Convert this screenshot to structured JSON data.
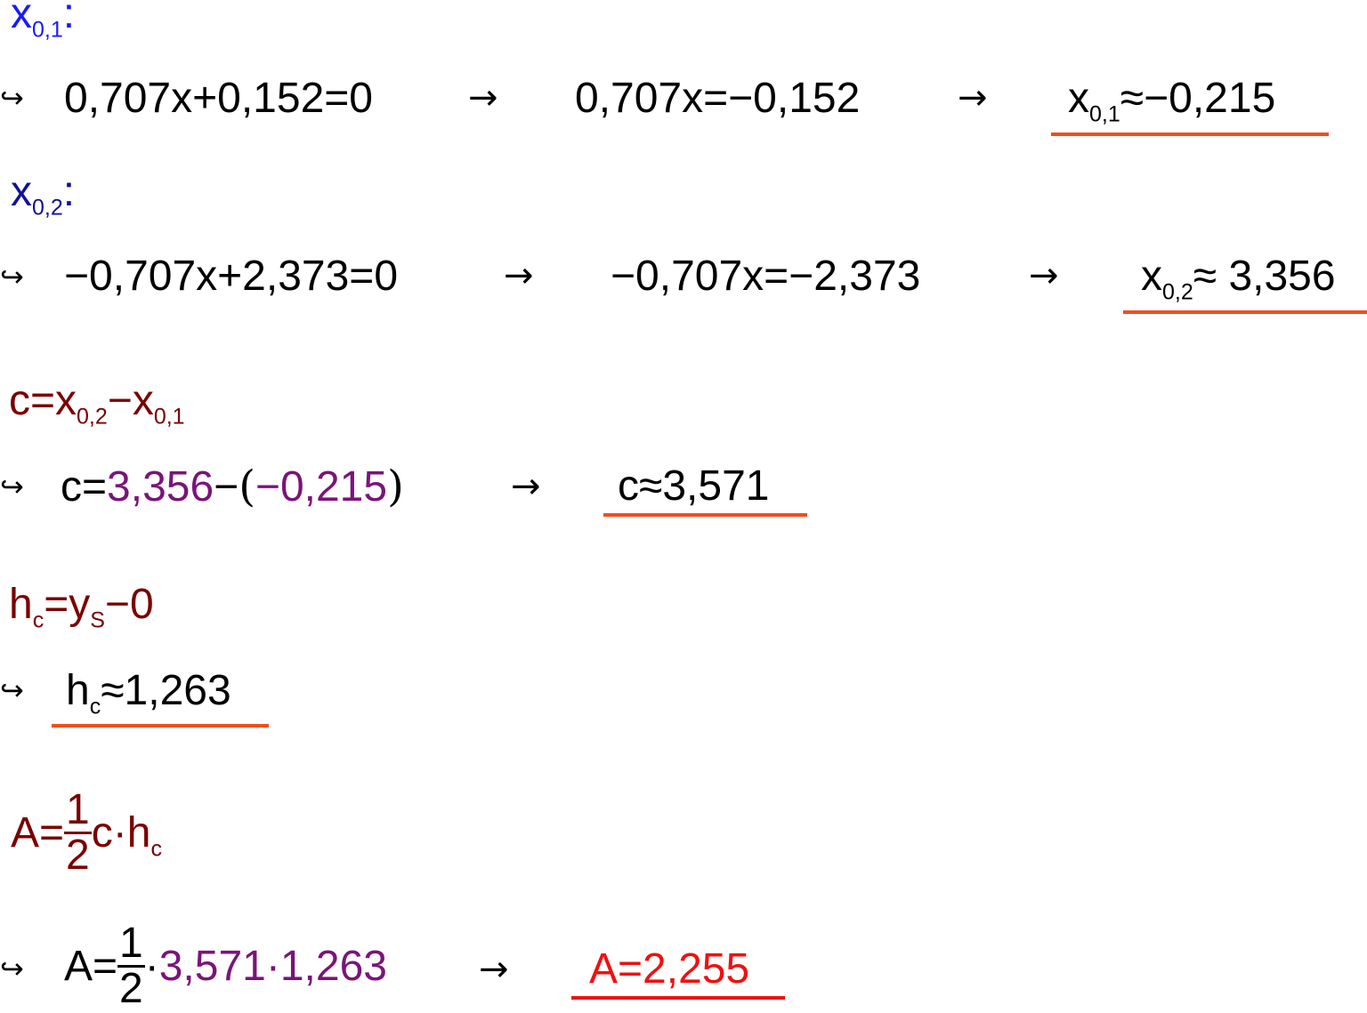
{
  "colors": {
    "text": "#000000",
    "label_x01": "#1a1aff",
    "label_x02": "#111199",
    "formula": "#7a0000",
    "purple": "#7a147a",
    "underline": "#f04e1e",
    "result_red": "#ee1111"
  },
  "symbols": {
    "hook_arrow": "↪",
    "right_arrow": "→"
  },
  "sections": {
    "x01": {
      "label": {
        "var": "x",
        "sub": "0,1",
        "suffix": ":"
      },
      "eq1": {
        "lhs": "0,707x+0,152=0"
      },
      "eq2": {
        "lhs": "0,707x=−0,152"
      },
      "result": {
        "var": "x",
        "sub": "0,1",
        "rhs": "≈−0,215"
      }
    },
    "x02": {
      "label": {
        "var": "x",
        "sub": "0,2",
        "suffix": ":"
      },
      "eq1": {
        "lhs": "−0,707x+2,373=0"
      },
      "eq2": {
        "lhs": "−0,707x=−2,373"
      },
      "result": {
        "var": "x",
        "sub": "0,2",
        "rhs": "≈ 3,356"
      }
    },
    "c": {
      "formula": {
        "prefix": "c=x",
        "sub1": "0,2",
        "mid": "−x",
        "sub2": "0,1"
      },
      "calc": {
        "prefix": "c=",
        "val1": "3,356",
        "minus": "−",
        "open": "(",
        "val2": "−0,215",
        "close": ")"
      },
      "result": "c≈3,571"
    },
    "hc": {
      "formula": {
        "h": "h",
        "hsub": "c",
        "eq": "=y",
        "ysub": "S",
        "tail": "−0"
      },
      "result": {
        "h": "h",
        "hsub": "c",
        "rhs": "≈1,263"
      }
    },
    "area": {
      "formula": {
        "prefix": "A=",
        "num": "1",
        "den": "2",
        "tail": "c·h",
        "sub": "c"
      },
      "calc": {
        "prefix": "A=",
        "num": "1",
        "den": "2",
        "dot": "·",
        "val1": "3,571",
        "dot2": "·",
        "val2": "1,263"
      },
      "result": "A=2,255"
    }
  }
}
